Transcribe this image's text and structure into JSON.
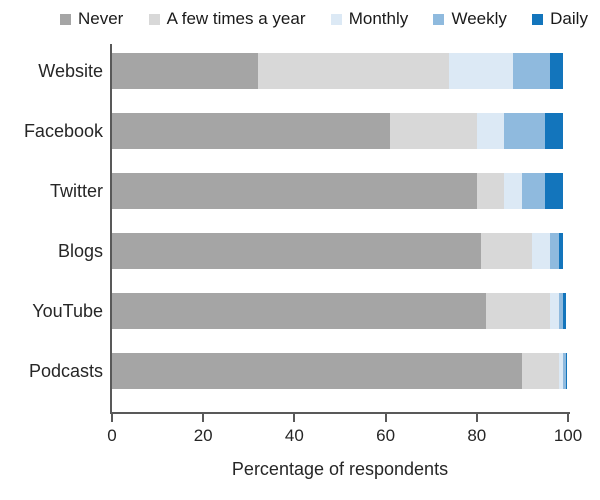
{
  "chart_data": {
    "type": "bar",
    "orientation": "horizontal",
    "stacked": true,
    "title": "",
    "xlabel": "Percentage of respondents",
    "ylabel": "",
    "xlim": [
      0,
      100
    ],
    "xticks": [
      0,
      20,
      40,
      60,
      80,
      100
    ],
    "grid": false,
    "legend_position": "top",
    "categories": [
      "Website",
      "Facebook",
      "Twitter",
      "Blogs",
      "YouTube",
      "Podcasts"
    ],
    "series": [
      {
        "name": "Never",
        "color": "#a5a5a5",
        "values": [
          32,
          61,
          80,
          81,
          82,
          90
        ]
      },
      {
        "name": "A few times a year",
        "color": "#d8d8d8",
        "values": [
          42,
          19,
          6,
          11,
          14,
          8
        ]
      },
      {
        "name": "Monthly",
        "color": "#dce9f5",
        "values": [
          14,
          6,
          4,
          4,
          2,
          1
        ]
      },
      {
        "name": "Weekly",
        "color": "#8fbade",
        "values": [
          8,
          9,
          5,
          2,
          1,
          0.5
        ]
      },
      {
        "name": "Daily",
        "color": "#1375bc",
        "values": [
          3,
          4,
          4,
          1,
          0.5,
          0.3
        ]
      }
    ]
  },
  "axis_color": "#595959"
}
